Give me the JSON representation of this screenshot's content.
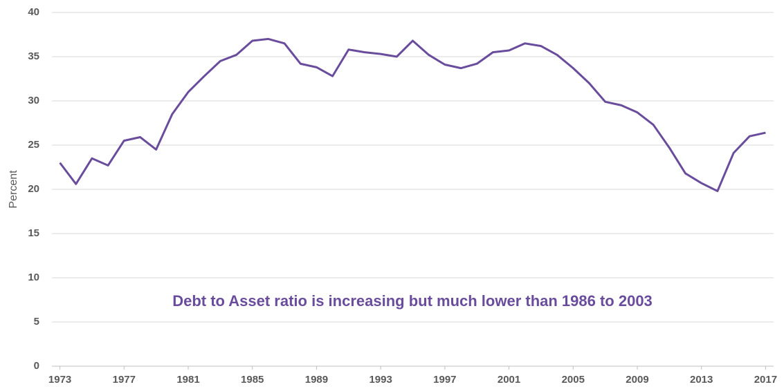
{
  "chart_data": {
    "type": "line",
    "y_label": "Percent",
    "annotation": "Debt to Asset ratio is increasing but much lower than 1986 to 2003",
    "x": [
      1973,
      1974,
      1975,
      1976,
      1977,
      1978,
      1979,
      1980,
      1981,
      1982,
      1983,
      1984,
      1985,
      1986,
      1987,
      1988,
      1989,
      1990,
      1991,
      1992,
      1993,
      1994,
      1995,
      1996,
      1997,
      1998,
      1999,
      2000,
      2001,
      2002,
      2003,
      2004,
      2005,
      2006,
      2007,
      2008,
      2009,
      2010,
      2011,
      2012,
      2013,
      2014,
      2015,
      2016,
      2017
    ],
    "series": [
      {
        "color": "#6a4c9c",
        "values": [
          23.0,
          20.6,
          23.5,
          22.7,
          25.5,
          25.9,
          24.5,
          28.5,
          31.0,
          32.8,
          34.5,
          35.2,
          36.8,
          37.0,
          36.5,
          34.2,
          33.8,
          32.8,
          35.8,
          35.5,
          35.3,
          35.0,
          36.8,
          35.2,
          34.1,
          33.7,
          34.2,
          35.5,
          35.7,
          36.5,
          36.2,
          35.2,
          33.7,
          32.0,
          29.9,
          29.5,
          28.7,
          27.3,
          24.7,
          21.8,
          20.7,
          19.8,
          24.1,
          26.0,
          26.4
        ]
      }
    ],
    "xlim": [
      1972.5,
      2017.5
    ],
    "xticks": [
      1973,
      1977,
      1981,
      1985,
      1989,
      1993,
      1997,
      2001,
      2005,
      2009,
      2013,
      2017
    ],
    "ylim": [
      0,
      40
    ],
    "yticks": [
      0,
      5,
      10,
      15,
      20,
      25,
      30,
      35,
      40
    ],
    "grid": true
  }
}
